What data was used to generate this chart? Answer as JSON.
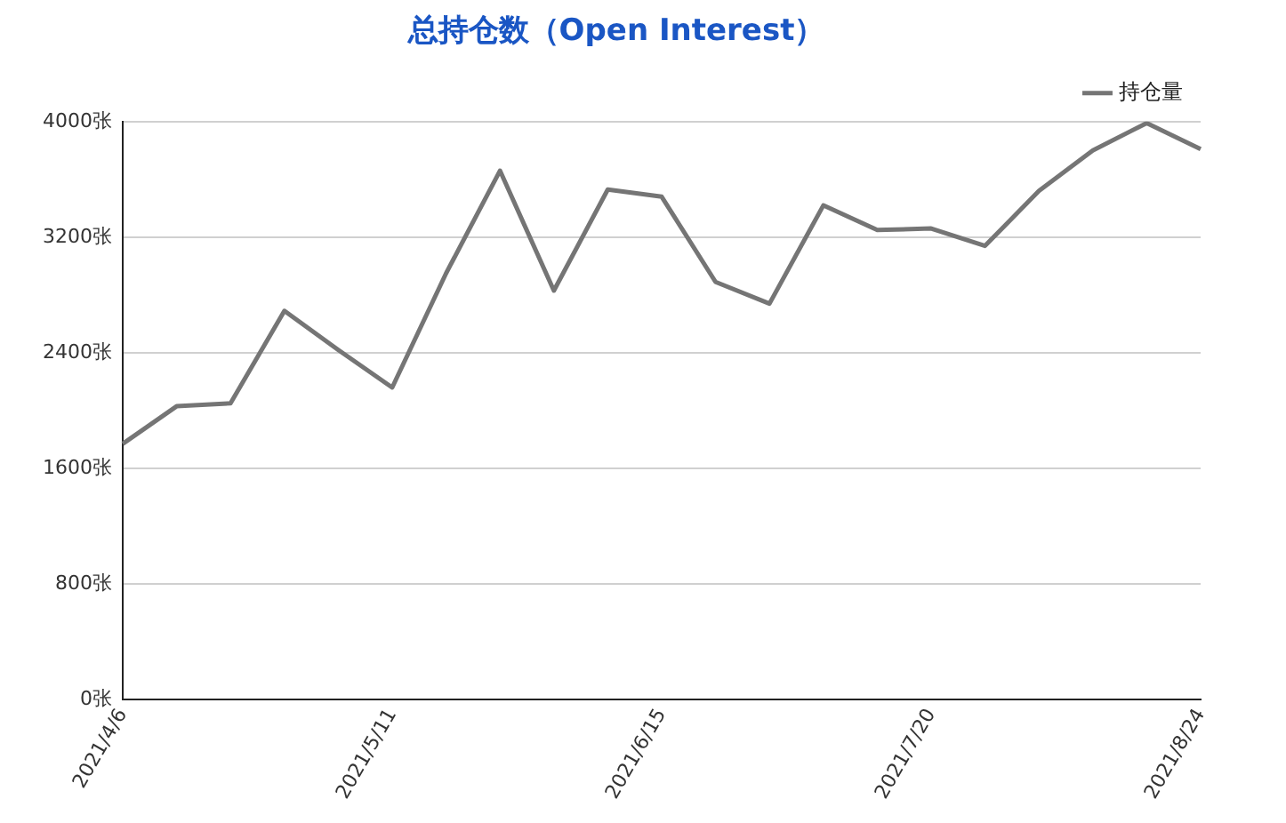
{
  "chart_data": {
    "type": "line",
    "title": "总持仓数（Open Interest）",
    "categories": [
      "2021/4/6",
      null,
      null,
      null,
      null,
      "2021/5/11",
      null,
      null,
      null,
      null,
      "2021/6/15",
      null,
      null,
      null,
      null,
      "2021/7/20",
      null,
      null,
      null,
      null,
      "2021/8/24"
    ],
    "series": [
      {
        "name": "持仓量",
        "color": "#757575",
        "values": [
          1770,
          2030,
          2050,
          2690,
          2420,
          2160,
          2950,
          3660,
          2830,
          3530,
          3480,
          2890,
          2740,
          3420,
          3250,
          3260,
          3140,
          3520,
          3800,
          3990,
          3810
        ]
      }
    ],
    "ylim": [
      0,
      4000
    ],
    "yticks": [
      {
        "value": 0,
        "label": "0张"
      },
      {
        "value": 800,
        "label": "800张"
      },
      {
        "value": 1600,
        "label": "1600张"
      },
      {
        "value": 2400,
        "label": "2400张"
      },
      {
        "value": 3200,
        "label": "3200张"
      },
      {
        "value": 4000,
        "label": "4000张"
      }
    ],
    "grid": "y",
    "legend": "top right",
    "marker": "none",
    "line_style": "solid"
  }
}
